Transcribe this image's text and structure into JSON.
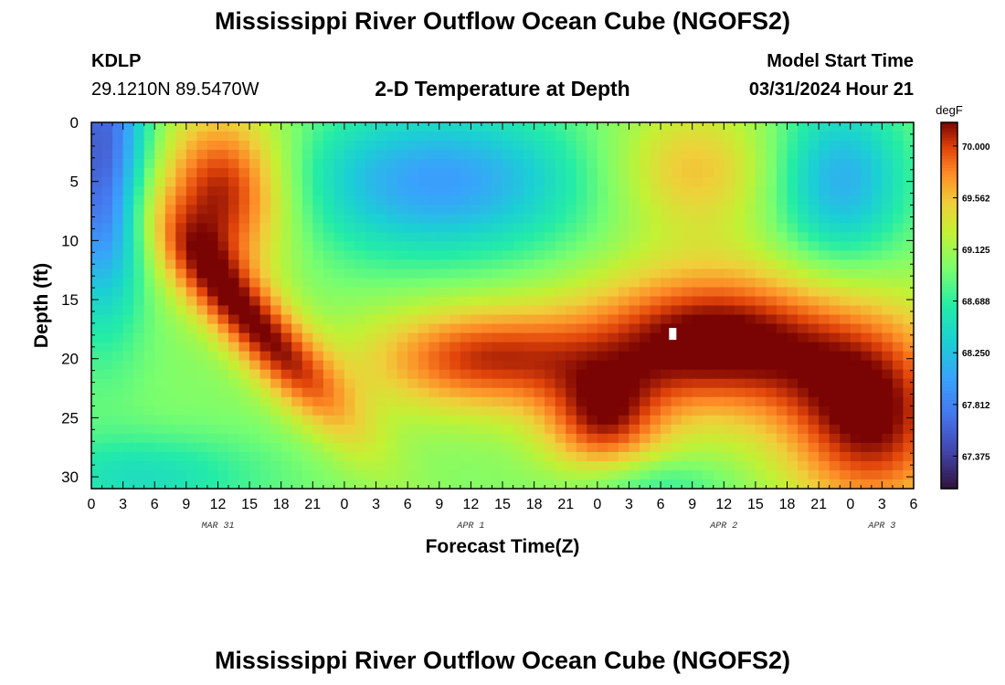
{
  "header": {
    "title": "Mississippi River Outflow Ocean Cube (NGOFS2)",
    "station": "KDLP",
    "coords": "29.1210N  89.5470W",
    "subtitle": "2-D Temperature at Depth",
    "model_label": "Model Start Time",
    "model_time": "03/31/2024 Hour 21"
  },
  "footer": {
    "title": "Mississippi River Outflow Ocean Cube (NGOFS2)"
  },
  "chart_data": {
    "type": "heatmap",
    "title": "2-D Temperature at Depth",
    "xlabel": "Forecast Time(Z)",
    "ylabel": "Depth (ft)",
    "x_range_hours": [
      0,
      78
    ],
    "x_tick_labels": [
      "0",
      "3",
      "6",
      "9",
      "12",
      "15",
      "18",
      "21",
      "0",
      "3",
      "6",
      "9",
      "12",
      "15",
      "18",
      "21",
      "0",
      "3",
      "6",
      "9",
      "12",
      "15",
      "18",
      "21",
      "0",
      "3",
      "6"
    ],
    "x_tick_step_hours": 3,
    "date_labels": [
      {
        "text": "MAR 31",
        "hour": 12
      },
      {
        "text": "APR 1",
        "hour": 36
      },
      {
        "text": "APR 2",
        "hour": 60
      },
      {
        "text": "APR 3",
        "hour": 75
      }
    ],
    "ylim": [
      0,
      31
    ],
    "y_ticks": [
      0,
      5,
      10,
      15,
      20,
      25,
      30
    ],
    "colorbar": {
      "unit": "degF",
      "min": 67.1,
      "max": 70.2,
      "ticks": [
        "67.375",
        "67.812",
        "68.250",
        "68.688",
        "69.125",
        "69.562",
        "70.000"
      ]
    },
    "grid": false
  }
}
